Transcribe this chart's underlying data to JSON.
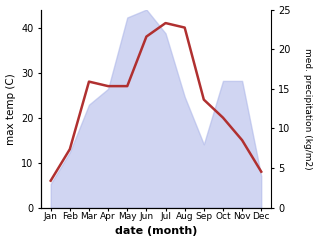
{
  "months": [
    "Jan",
    "Feb",
    "Mar",
    "Apr",
    "May",
    "Jun",
    "Jul",
    "Aug",
    "Sep",
    "Oct",
    "Nov",
    "Dec"
  ],
  "month_positions": [
    0,
    1,
    2,
    3,
    4,
    5,
    6,
    7,
    8,
    9,
    10,
    11
  ],
  "max_temp": [
    6,
    13,
    28,
    27,
    27,
    38,
    41,
    40,
    24,
    20,
    15,
    8
  ],
  "precipitation": [
    3,
    7,
    13,
    15,
    24,
    25,
    22,
    14,
    8,
    16,
    16,
    4
  ],
  "temp_ylim": [
    0,
    44
  ],
  "precip_ylim": [
    0,
    25
  ],
  "fill_color": "#aab4e8",
  "fill_alpha": 0.55,
  "line_color": "#b03030",
  "line_width": 1.8,
  "ylabel_left": "max temp (C)",
  "ylabel_right": "med. precipitation (kg/m2)",
  "xlabel": "date (month)",
  "left_yticks": [
    0,
    10,
    20,
    30,
    40
  ],
  "right_yticks": [
    0,
    5,
    10,
    15,
    20,
    25
  ]
}
